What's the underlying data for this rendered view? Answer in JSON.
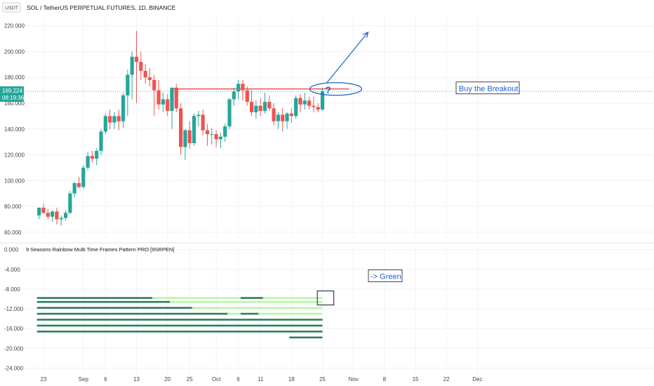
{
  "header": {
    "currency_badge": "USDT",
    "symbol_title": "SOL / TetherUS PERPETUAL FUTURES, 1D, BINANCE"
  },
  "price_label": {
    "price": "169.224",
    "countdown": "08:19:36"
  },
  "colors": {
    "up": "#26a69a",
    "down": "#ef5350",
    "resistance": "#e53935",
    "annotation": "#1e63c7",
    "price_line": "#26a69a",
    "dark_green": "#2e7d5b",
    "light_green": "#b9f6a6"
  },
  "annotations": {
    "breakout_text": "Buy the Breakout",
    "question_mark": "?",
    "green_text": "-> Green"
  },
  "indicator": {
    "title": "9 Seasons Rainbow Multi Time Frames Pattern PRO [9SRPEN]"
  },
  "chart_data": [
    {
      "type": "candlestick",
      "title": "SOL / TetherUS PERPETUAL FUTURES, 1D, BINANCE",
      "ylim": [
        55,
        228
      ],
      "y_ticks": [
        "60.000",
        "80.000",
        "100.000",
        "120.000",
        "140.000",
        "160.000",
        "180.000",
        "200.000",
        "220.000"
      ],
      "y_tick_values": [
        60,
        80,
        100,
        120,
        140,
        160,
        180,
        200,
        220
      ],
      "x_ticks": [
        "23",
        "Sep",
        "6",
        "13",
        "20",
        "25",
        "Oct",
        "6",
        "11",
        "18",
        "25",
        "Nov",
        "8",
        "15",
        "22",
        "Dec"
      ],
      "x_tick_days": [
        0,
        9,
        14,
        21,
        28,
        33,
        39,
        44,
        49,
        56,
        63,
        70,
        77,
        84,
        91,
        98
      ],
      "x_start": "Aug 23",
      "last_price": 169.224,
      "resistance_level": 171,
      "candles": [
        {
          "d": -1,
          "o": 73,
          "h": 78,
          "l": 70,
          "c": 79
        },
        {
          "d": 0,
          "o": 79,
          "h": 82,
          "l": 74,
          "c": 75
        },
        {
          "d": 1,
          "o": 75,
          "h": 78,
          "l": 70,
          "c": 72
        },
        {
          "d": 2,
          "o": 72,
          "h": 77,
          "l": 68,
          "c": 76
        },
        {
          "d": 3,
          "o": 76,
          "h": 79,
          "l": 66,
          "c": 70
        },
        {
          "d": 4,
          "o": 70,
          "h": 73,
          "l": 65,
          "c": 71
        },
        {
          "d": 5,
          "o": 71,
          "h": 77,
          "l": 69,
          "c": 75
        },
        {
          "d": 6,
          "o": 75,
          "h": 92,
          "l": 74,
          "c": 90
        },
        {
          "d": 7,
          "o": 90,
          "h": 99,
          "l": 87,
          "c": 98
        },
        {
          "d": 8,
          "o": 98,
          "h": 103,
          "l": 94,
          "c": 95
        },
        {
          "d": 9,
          "o": 95,
          "h": 112,
          "l": 94,
          "c": 110
        },
        {
          "d": 10,
          "o": 110,
          "h": 122,
          "l": 108,
          "c": 119
        },
        {
          "d": 11,
          "o": 119,
          "h": 123,
          "l": 114,
          "c": 117
        },
        {
          "d": 12,
          "o": 117,
          "h": 125,
          "l": 112,
          "c": 123
        },
        {
          "d": 13,
          "o": 123,
          "h": 140,
          "l": 120,
          "c": 138
        },
        {
          "d": 14,
          "o": 138,
          "h": 152,
          "l": 136,
          "c": 150
        },
        {
          "d": 15,
          "o": 150,
          "h": 155,
          "l": 140,
          "c": 145
        },
        {
          "d": 16,
          "o": 145,
          "h": 153,
          "l": 140,
          "c": 150
        },
        {
          "d": 17,
          "o": 150,
          "h": 155,
          "l": 139,
          "c": 146
        },
        {
          "d": 18,
          "o": 146,
          "h": 168,
          "l": 141,
          "c": 166
        },
        {
          "d": 19,
          "o": 166,
          "h": 186,
          "l": 150,
          "c": 182
        },
        {
          "d": 20,
          "o": 182,
          "h": 200,
          "l": 163,
          "c": 196
        },
        {
          "d": 21,
          "o": 196,
          "h": 216,
          "l": 160,
          "c": 192
        },
        {
          "d": 22,
          "o": 192,
          "h": 200,
          "l": 178,
          "c": 185
        },
        {
          "d": 23,
          "o": 185,
          "h": 190,
          "l": 175,
          "c": 180
        },
        {
          "d": 24,
          "o": 180,
          "h": 187,
          "l": 173,
          "c": 178
        },
        {
          "d": 25,
          "o": 178,
          "h": 182,
          "l": 150,
          "c": 170
        },
        {
          "d": 26,
          "o": 170,
          "h": 178,
          "l": 155,
          "c": 159
        },
        {
          "d": 27,
          "o": 159,
          "h": 168,
          "l": 153,
          "c": 163
        },
        {
          "d": 28,
          "o": 163,
          "h": 167,
          "l": 150,
          "c": 154
        },
        {
          "d": 29,
          "o": 154,
          "h": 172,
          "l": 140,
          "c": 172
        },
        {
          "d": 30,
          "o": 172,
          "h": 175,
          "l": 153,
          "c": 156
        },
        {
          "d": 31,
          "o": 156,
          "h": 160,
          "l": 120,
          "c": 126
        },
        {
          "d": 32,
          "o": 126,
          "h": 140,
          "l": 116,
          "c": 139
        },
        {
          "d": 33,
          "o": 139,
          "h": 146,
          "l": 125,
          "c": 129
        },
        {
          "d": 34,
          "o": 129,
          "h": 152,
          "l": 127,
          "c": 150
        },
        {
          "d": 35,
          "o": 150,
          "h": 154,
          "l": 142,
          "c": 151
        },
        {
          "d": 36,
          "o": 151,
          "h": 155,
          "l": 135,
          "c": 139
        },
        {
          "d": 37,
          "o": 139,
          "h": 144,
          "l": 127,
          "c": 136
        },
        {
          "d": 38,
          "o": 136,
          "h": 141,
          "l": 128,
          "c": 136
        },
        {
          "d": 39,
          "o": 136,
          "h": 139,
          "l": 126,
          "c": 132
        },
        {
          "d": 40,
          "o": 132,
          "h": 137,
          "l": 125,
          "c": 134
        },
        {
          "d": 41,
          "o": 134,
          "h": 144,
          "l": 130,
          "c": 142
        },
        {
          "d": 42,
          "o": 142,
          "h": 164,
          "l": 140,
          "c": 163
        },
        {
          "d": 43,
          "o": 163,
          "h": 172,
          "l": 158,
          "c": 169
        },
        {
          "d": 44,
          "o": 169,
          "h": 178,
          "l": 163,
          "c": 175
        },
        {
          "d": 45,
          "o": 175,
          "h": 178,
          "l": 162,
          "c": 170
        },
        {
          "d": 46,
          "o": 170,
          "h": 173,
          "l": 158,
          "c": 161
        },
        {
          "d": 47,
          "o": 161,
          "h": 170,
          "l": 150,
          "c": 153
        },
        {
          "d": 48,
          "o": 153,
          "h": 162,
          "l": 148,
          "c": 158
        },
        {
          "d": 49,
          "o": 158,
          "h": 164,
          "l": 150,
          "c": 154
        },
        {
          "d": 50,
          "o": 154,
          "h": 168,
          "l": 152,
          "c": 161
        },
        {
          "d": 51,
          "o": 161,
          "h": 166,
          "l": 154,
          "c": 156
        },
        {
          "d": 52,
          "o": 156,
          "h": 160,
          "l": 143,
          "c": 146
        },
        {
          "d": 53,
          "o": 146,
          "h": 153,
          "l": 140,
          "c": 151
        },
        {
          "d": 54,
          "o": 151,
          "h": 156,
          "l": 138,
          "c": 146
        },
        {
          "d": 55,
          "o": 146,
          "h": 153,
          "l": 140,
          "c": 152
        },
        {
          "d": 56,
          "o": 152,
          "h": 156,
          "l": 145,
          "c": 150
        },
        {
          "d": 57,
          "o": 150,
          "h": 166,
          "l": 148,
          "c": 164
        },
        {
          "d": 58,
          "o": 164,
          "h": 167,
          "l": 153,
          "c": 159
        },
        {
          "d": 59,
          "o": 159,
          "h": 168,
          "l": 155,
          "c": 162
        },
        {
          "d": 60,
          "o": 162,
          "h": 165,
          "l": 155,
          "c": 158
        },
        {
          "d": 61,
          "o": 158,
          "h": 165,
          "l": 153,
          "c": 157
        },
        {
          "d": 62,
          "o": 157,
          "h": 160,
          "l": 153,
          "c": 155
        },
        {
          "d": 63,
          "o": 155,
          "h": 172,
          "l": 154,
          "c": 169.2
        }
      ]
    },
    {
      "type": "indicator-bars",
      "title": "9 Seasons Rainbow Multi Time Frames Pattern PRO [9SRPEN]",
      "ylim": [
        -25.5,
        0.8
      ],
      "y_ticks": [
        "0.000",
        "-4.000",
        "-8.000",
        "-12.000",
        "-16.000",
        "-20.000",
        "-24.000"
      ],
      "y_tick_values": [
        0,
        -4,
        -8,
        -12,
        -16,
        -20,
        -24
      ],
      "rows": [
        {
          "y": -9.8,
          "segments": [
            {
              "from": -1,
              "to": 25,
              "tone": "dark"
            },
            {
              "from": 25,
              "to": 45,
              "tone": "light"
            },
            {
              "from": 45,
              "to": 50,
              "tone": "dark"
            },
            {
              "from": 50,
              "to": 63,
              "tone": "light"
            }
          ]
        },
        {
          "y": -10.6,
          "segments": [
            {
              "from": -1,
              "to": 29,
              "tone": "dark"
            },
            {
              "from": 29,
              "to": 63,
              "tone": "light"
            }
          ]
        },
        {
          "y": -11.8,
          "segments": [
            {
              "from": -1,
              "to": 34,
              "tone": "dark"
            },
            {
              "from": 34,
              "to": 63,
              "tone": "light"
            }
          ]
        },
        {
          "y": -13.0,
          "segments": [
            {
              "from": -1,
              "to": 42,
              "tone": "dark"
            },
            {
              "from": 42,
              "to": 45,
              "tone": "light"
            },
            {
              "from": 45,
              "to": 49,
              "tone": "dark"
            },
            {
              "from": 49,
              "to": 63,
              "tone": "light"
            }
          ]
        },
        {
          "y": -14.2,
          "segments": [
            {
              "from": -1,
              "to": 63,
              "tone": "dark"
            }
          ]
        },
        {
          "y": -15.4,
          "segments": [
            {
              "from": -1,
              "to": 63,
              "tone": "dark"
            }
          ]
        },
        {
          "y": -16.6,
          "segments": [
            {
              "from": -1,
              "to": 63,
              "tone": "dark"
            }
          ]
        },
        {
          "y": -17.8,
          "segments": [
            {
              "from": 56,
              "to": 63,
              "tone": "dark"
            }
          ]
        }
      ],
      "highlight": {
        "from": 62,
        "to": 63.5,
        "y": -9.8
      }
    }
  ]
}
